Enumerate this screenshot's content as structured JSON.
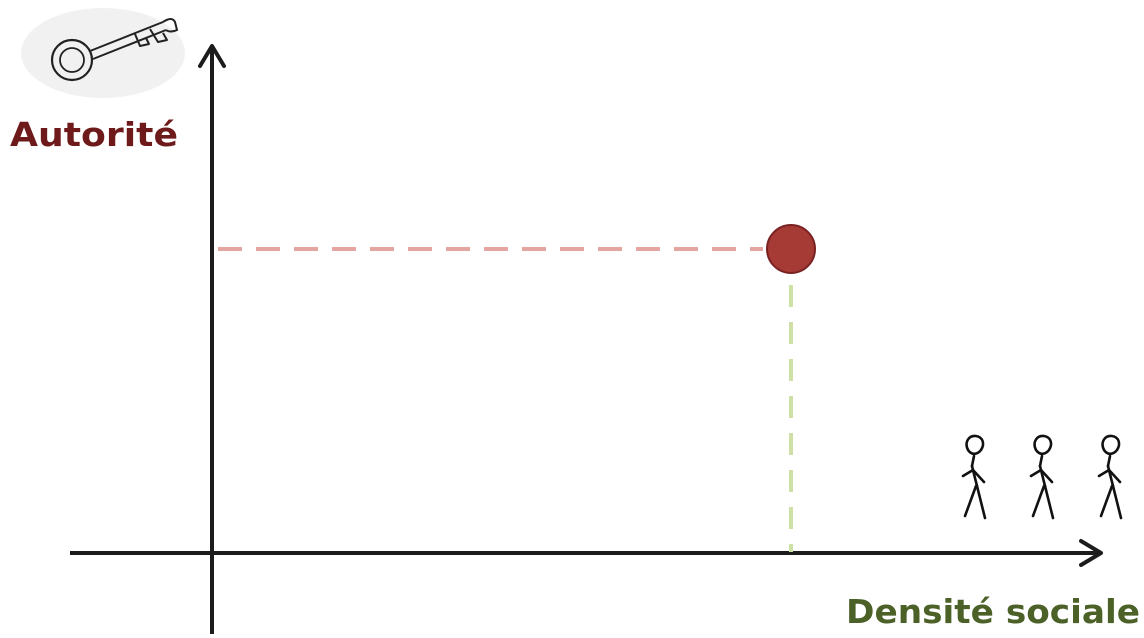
{
  "labels": {
    "y_axis": "Autorité",
    "x_axis": "Densité sociale"
  },
  "icons": {
    "y_axis_icon": "key-icon",
    "x_axis_icon": "stick-figures-icon"
  },
  "colors": {
    "axis": "#1c1c1c",
    "point_fill": "#a63a35",
    "point_stroke": "#7a2222",
    "horizontal_guide": "#e3a6a1",
    "vertical_guide": "#cfe0a6",
    "y_label": "#6e1a1a",
    "x_label": "#4b6128",
    "key_halo": "#f1f1f1"
  }
}
